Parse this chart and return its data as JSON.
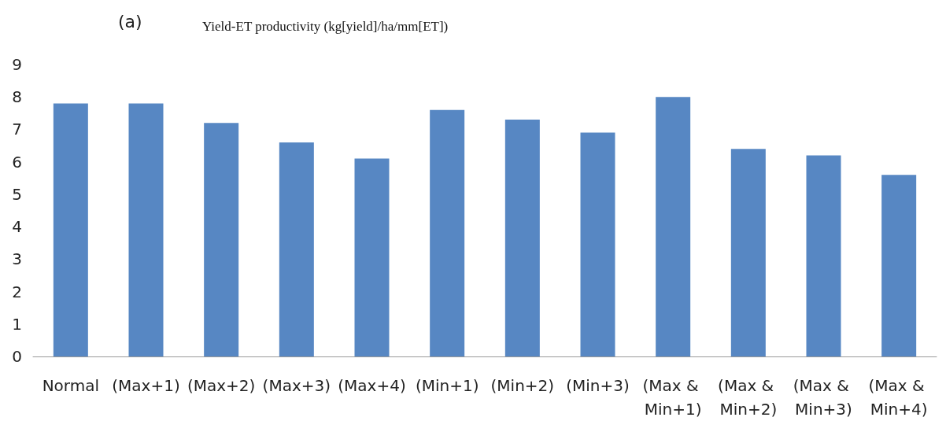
{
  "chart_data": {
    "type": "bar",
    "title": "Yield-ET productivity (kg[yield]/ha/mm[ET])",
    "annotations": [
      "(a)"
    ],
    "categories": [
      "Normal",
      "(Max+1)",
      "(Max+2)",
      "(Max+3)",
      "(Max+4)",
      "(Min+1)",
      "(Min+2)",
      "(Min+3)",
      "(Max & Min+1)",
      "(Max & Min+2)",
      "(Max & Min+3)",
      "(Max & Min+4)"
    ],
    "values": [
      7.8,
      7.8,
      7.2,
      6.6,
      6.1,
      7.6,
      7.3,
      6.9,
      8.0,
      6.4,
      6.2,
      5.6
    ],
    "color": "#5787c3",
    "ylim": [
      0,
      9
    ],
    "yticks": [
      0,
      1,
      2,
      3,
      4,
      5,
      6,
      7,
      8,
      9
    ],
    "grid": false
  }
}
